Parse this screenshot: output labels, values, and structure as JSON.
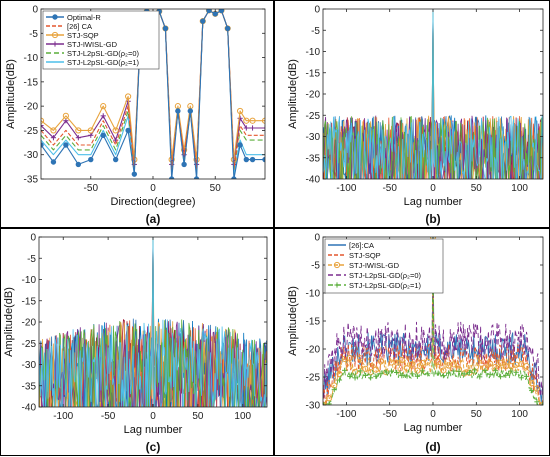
{
  "chart_data": [
    {
      "id": "a",
      "type": "line",
      "panel_label": "(a)",
      "xlabel": "Direction(degree)",
      "ylabel": "Amplitude(dB)",
      "xlim": [
        -90,
        90
      ],
      "ylim": [
        -35,
        0
      ],
      "xticks": [
        -50,
        0,
        50
      ],
      "yticks": [
        -35,
        -30,
        -25,
        -20,
        -15,
        -10,
        -5,
        0
      ],
      "grid": false,
      "legend_position": "top-left",
      "series": [
        {
          "name": "Optimal-R",
          "color": "#2E74B5",
          "marker": "dot",
          "x": [
            -90,
            -80,
            -70,
            -60,
            -50,
            -40,
            -30,
            -20,
            -15,
            -10,
            -5,
            0,
            5,
            10,
            15,
            20,
            25,
            30,
            35,
            40,
            45,
            50,
            55,
            60,
            65,
            70,
            75,
            80,
            90
          ],
          "y": [
            -28,
            -31.5,
            -28,
            -32,
            -31,
            -26,
            -31,
            -25,
            -34,
            -4,
            -0.5,
            -1,
            -0.5,
            -4,
            -35,
            -21,
            -32,
            -21,
            -35,
            -2.5,
            -0.3,
            -1,
            -0.3,
            -4,
            -35,
            -28,
            -31,
            -31,
            -31
          ]
        },
        {
          "name": "[26] CA",
          "color": "#E4572E",
          "marker": "none",
          "dash": "4,2",
          "x": [
            -90,
            -80,
            -70,
            -60,
            -50,
            -40,
            -30,
            -20,
            -15,
            -10,
            -5,
            0,
            5,
            10,
            15,
            20,
            25,
            30,
            35,
            40,
            45,
            50,
            55,
            60,
            65,
            70,
            75,
            80,
            90
          ],
          "y": [
            -25,
            -28,
            -25,
            -28,
            -28,
            -23,
            -28,
            -20,
            -33,
            -4,
            -0.5,
            -1,
            -0.5,
            -4,
            -33,
            -21,
            -30,
            -21,
            -33,
            -2.5,
            -0.3,
            -1,
            -0.3,
            -4,
            -33,
            -24,
            -26,
            -26,
            -26
          ]
        },
        {
          "name": "STJ-SQP",
          "color": "#E8A33D",
          "marker": "circle",
          "x": [
            -90,
            -80,
            -70,
            -60,
            -50,
            -40,
            -30,
            -20,
            -15,
            -10,
            -5,
            0,
            5,
            10,
            15,
            20,
            25,
            30,
            35,
            40,
            45,
            50,
            55,
            60,
            65,
            70,
            75,
            80,
            90
          ],
          "y": [
            -23,
            -25,
            -22,
            -25,
            -25,
            -20,
            -25,
            -18,
            -31,
            -4,
            -0.5,
            -1,
            -0.5,
            -4,
            -31,
            -20,
            -29,
            -20,
            -31,
            -2.5,
            -0.3,
            -1,
            -0.3,
            -4,
            -31,
            -21,
            -23,
            -23,
            -23
          ]
        },
        {
          "name": "STJ-IWISL-GD",
          "color": "#7B2D8E",
          "marker": "plus",
          "x": [
            -90,
            -80,
            -70,
            -60,
            -50,
            -40,
            -30,
            -20,
            -15,
            -10,
            -5,
            0,
            5,
            10,
            15,
            20,
            25,
            30,
            35,
            40,
            45,
            50,
            55,
            60,
            65,
            70,
            75,
            80,
            90
          ],
          "y": [
            -24,
            -26.5,
            -23,
            -26.5,
            -26,
            -22,
            -27,
            -19,
            -32,
            -4,
            -0.5,
            -1,
            -0.5,
            -4,
            -32,
            -21,
            -30,
            -21,
            -32,
            -2.5,
            -0.3,
            -1,
            -0.3,
            -4,
            -32,
            -22.5,
            -24.5,
            -24.5,
            -24.5
          ]
        },
        {
          "name": "STJ-L2pSL-GD(ρ₂=0)",
          "color": "#5AAE3A",
          "marker": "none",
          "dash": "5,3",
          "x": [
            -90,
            -80,
            -70,
            -60,
            -50,
            -40,
            -30,
            -20,
            -15,
            -10,
            -5,
            0,
            5,
            10,
            15,
            20,
            25,
            30,
            35,
            40,
            45,
            50,
            55,
            60,
            65,
            70,
            75,
            80,
            90
          ],
          "y": [
            -26,
            -29,
            -26,
            -29,
            -29,
            -24,
            -29,
            -21,
            -33,
            -4,
            -0.5,
            -1,
            -0.5,
            -4,
            -33,
            -21,
            -31,
            -21,
            -33,
            -2.5,
            -0.3,
            -1,
            -0.3,
            -4,
            -33,
            -25,
            -27,
            -27,
            -27
          ]
        },
        {
          "name": "STJ-L2pSL-GD(ρ₂=1)",
          "color": "#4DBFEA",
          "marker": "none",
          "x": [
            -90,
            -80,
            -70,
            -60,
            -50,
            -40,
            -30,
            -20,
            -15,
            -10,
            -5,
            0,
            5,
            10,
            15,
            20,
            25,
            30,
            35,
            40,
            45,
            50,
            55,
            60,
            65,
            70,
            75,
            80,
            90
          ],
          "y": [
            -27,
            -30,
            -27,
            -30,
            -30,
            -25,
            -30,
            -22,
            -34,
            -4,
            -0.5,
            -1,
            -0.5,
            -4,
            -34,
            -21,
            -32,
            -21,
            -34,
            -2.5,
            -0.3,
            -1,
            -0.3,
            -4,
            -34,
            -27,
            -30,
            -30,
            -30
          ]
        }
      ]
    },
    {
      "id": "b",
      "type": "line",
      "panel_label": "(b)",
      "xlabel": "Lag number",
      "ylabel": "Amplitude(dB)",
      "xlim": [
        -127,
        127
      ],
      "ylim": [
        -40,
        0
      ],
      "xticks": [
        -100,
        -50,
        0,
        50,
        100
      ],
      "yticks": [
        -40,
        -35,
        -30,
        -25,
        -20,
        -15,
        -10,
        -5,
        0
      ],
      "grid": false,
      "dense_series_count": 8,
      "peak_db": 0,
      "floor_top_db": -25,
      "floor_bottom_db": -40,
      "floor_shape": "flat"
    },
    {
      "id": "c",
      "type": "line",
      "panel_label": "(c)",
      "xlabel": "Lag number",
      "ylabel": "Amplitude(dB)",
      "xlim": [
        -127,
        127
      ],
      "ylim": [
        -40,
        0
      ],
      "xticks": [
        -100,
        -50,
        0,
        50,
        100
      ],
      "yticks": [
        -40,
        -35,
        -30,
        -25,
        -20,
        -15,
        -10,
        -5,
        0
      ],
      "grid": false,
      "dense_series_count": 8,
      "peak_db": 0,
      "floor_top_db": -19,
      "floor_bottom_db": -40,
      "floor_shape": "arched"
    },
    {
      "id": "d",
      "type": "line",
      "panel_label": "(d)",
      "xlabel": "Lag number",
      "ylabel": "Amplitude(dB)",
      "xlim": [
        -127,
        127
      ],
      "ylim": [
        -30,
        0
      ],
      "xticks": [
        -100,
        -50,
        0,
        50,
        100
      ],
      "yticks": [
        -30,
        -25,
        -20,
        -15,
        -10,
        -5,
        0
      ],
      "grid": false,
      "legend_position": "top-left",
      "series": [
        {
          "name": "[26]:CA",
          "color": "#2E74B5",
          "marker": "none",
          "level": -20,
          "spread": 3
        },
        {
          "name": "STJ-SQP",
          "color": "#E4572E",
          "marker": "none",
          "dash": "4,2",
          "level": -21.5,
          "spread": 2.5
        },
        {
          "name": "STJ-IWISL-GD",
          "color": "#E8A33D",
          "marker": "circle",
          "dash": "4,2",
          "level": -23,
          "spread": 1.5
        },
        {
          "name": "STJ-L2pSL-GD(ρ₂=0)",
          "color": "#7B2D8E",
          "marker": "none",
          "dash": "5,3",
          "level": -18.5,
          "spread": 3.5
        },
        {
          "name": "STJ-L2pSL-GD(ρ₂=1)",
          "color": "#5AAE3A",
          "marker": "plus",
          "dash": "5,3",
          "level": -24.5,
          "spread": 0.8
        }
      ]
    }
  ],
  "palette": [
    "#2E74B5",
    "#E4572E",
    "#E8A33D",
    "#7B2D8E",
    "#5AAE3A",
    "#4DBFEA",
    "#A2142F",
    "#0072BD"
  ]
}
